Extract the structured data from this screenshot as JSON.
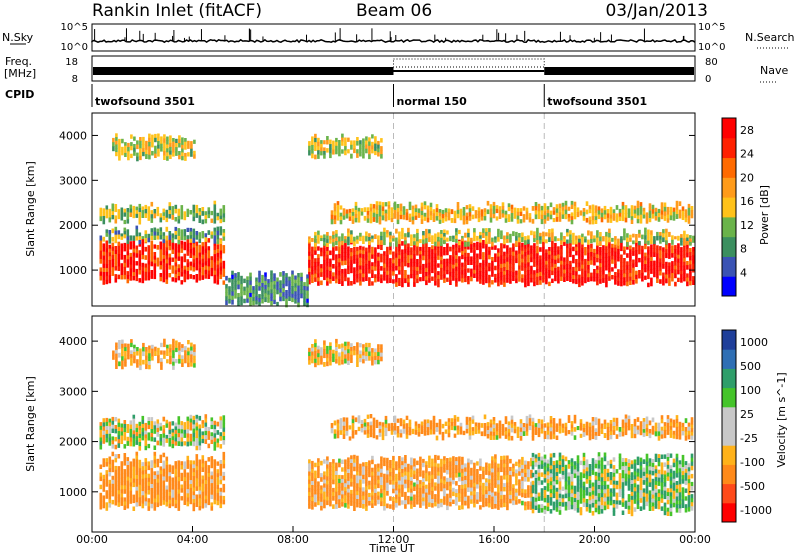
{
  "header": {
    "station": "Rankin Inlet (fitACF)",
    "beam": "Beam 06",
    "date": "03/Jan/2013"
  },
  "top_panels": {
    "nsky_label": "N.Sky",
    "nsky_ticks": [
      "10^5",
      "10^0"
    ],
    "nsearch_label": "N.Search",
    "nsearch_ticks": [
      "10^5",
      "10^0"
    ],
    "freq_label": "Freq.",
    "freq_unit": "[MHz]",
    "freq_ticks": [
      "18",
      "8"
    ],
    "nave_label": "Nave",
    "nave_ticks": [
      "80",
      "0"
    ],
    "cpid_label": "CPID",
    "cpid_segments": [
      {
        "label": "twofsound 3501",
        "start_hour": 0
      },
      {
        "label": "normal 150",
        "start_hour": 12
      },
      {
        "label": "twofsound 3501",
        "start_hour": 18
      }
    ]
  },
  "colors": {
    "power_scale": [
      "#0000ff",
      "#3a53b4",
      "#3b8f5f",
      "#6ab34a",
      "#ffc21a",
      "#ff9b1a",
      "#ff6a00",
      "#ff2000",
      "#ff0000"
    ],
    "velocity_scale": [
      "#ff0000",
      "#ff4a1a",
      "#ff8a1a",
      "#ffb21a",
      "#c8c8c8",
      "#c8c8c8",
      "#45c42a",
      "#2f9e6a",
      "#2f6fb4",
      "#1f3f9a"
    ]
  },
  "chart_data": [
    {
      "type": "heatmap",
      "name": "power",
      "ylabel": "Slant Range [km]",
      "yticks": [
        "1000",
        "2000",
        "3000",
        "4000"
      ],
      "ylim": [
        200,
        4500
      ],
      "xlim_hours": [
        0,
        24
      ],
      "colorbar_label": "Power [dB]",
      "colorbar_ticks": [
        "4",
        "8",
        "12",
        "16",
        "20",
        "24",
        "28"
      ],
      "colorbar_range": [
        0,
        30
      ],
      "bands": [
        {
          "t_start": 0.3,
          "t_end": 5.3,
          "r_low": 750,
          "r_high": 1650,
          "level": 26
        },
        {
          "t_start": 0.3,
          "t_end": 5.3,
          "r_low": 1650,
          "r_high": 1900,
          "level": 10
        },
        {
          "t_start": 8.6,
          "t_end": 24.0,
          "r_low": 700,
          "r_high": 1600,
          "level": 27
        },
        {
          "t_start": 8.6,
          "t_end": 24.0,
          "r_low": 1600,
          "r_high": 1850,
          "level": 14
        },
        {
          "t_start": 0.3,
          "t_end": 5.3,
          "r_low": 2100,
          "r_high": 2450,
          "level": 12
        },
        {
          "t_start": 0.8,
          "t_end": 4.2,
          "r_low": 3500,
          "r_high": 3950,
          "level": 14
        },
        {
          "t_start": 8.6,
          "t_end": 11.6,
          "r_low": 3550,
          "r_high": 3950,
          "level": 14
        },
        {
          "t_start": 9.5,
          "t_end": 24.0,
          "r_low": 2100,
          "r_high": 2450,
          "level": 16
        },
        {
          "t_start": 5.3,
          "t_end": 8.6,
          "r_low": 250,
          "r_high": 900,
          "level": 8
        }
      ]
    },
    {
      "type": "heatmap",
      "name": "velocity",
      "ylabel": "Slant Range [km]",
      "yticks": [
        "1000",
        "2000",
        "3000",
        "4000"
      ],
      "ylim": [
        200,
        4500
      ],
      "xlim_hours": [
        0,
        24
      ],
      "xticks": [
        "00:00",
        "04:00",
        "08:00",
        "12:00",
        "16:00",
        "20:00",
        "00:00"
      ],
      "xlabel": "Time UT",
      "colorbar_label": "Velocity [m s^-1]",
      "colorbar_ticks": [
        "1000",
        "500",
        "100",
        "25",
        "-25",
        "-100",
        "-500",
        "-1000"
      ],
      "bands": [
        {
          "t_start": 0.3,
          "t_end": 5.3,
          "r_low": 700,
          "r_high": 1700,
          "value": -150
        },
        {
          "t_start": 0.3,
          "t_end": 5.3,
          "r_low": 1900,
          "r_high": 2450,
          "value": 0
        },
        {
          "t_start": 8.6,
          "t_end": 17.5,
          "r_low": 700,
          "r_high": 1650,
          "value": -120
        },
        {
          "t_start": 17.5,
          "t_end": 24.0,
          "r_low": 600,
          "r_high": 1700,
          "value": 60
        },
        {
          "t_start": 9.5,
          "t_end": 24.0,
          "r_low": 2100,
          "r_high": 2450,
          "value": -120
        },
        {
          "t_start": 0.8,
          "t_end": 4.2,
          "r_low": 3500,
          "r_high": 3950,
          "value": -80
        },
        {
          "t_start": 8.6,
          "t_end": 11.6,
          "r_low": 3550,
          "r_high": 3950,
          "value": -60
        }
      ]
    }
  ]
}
